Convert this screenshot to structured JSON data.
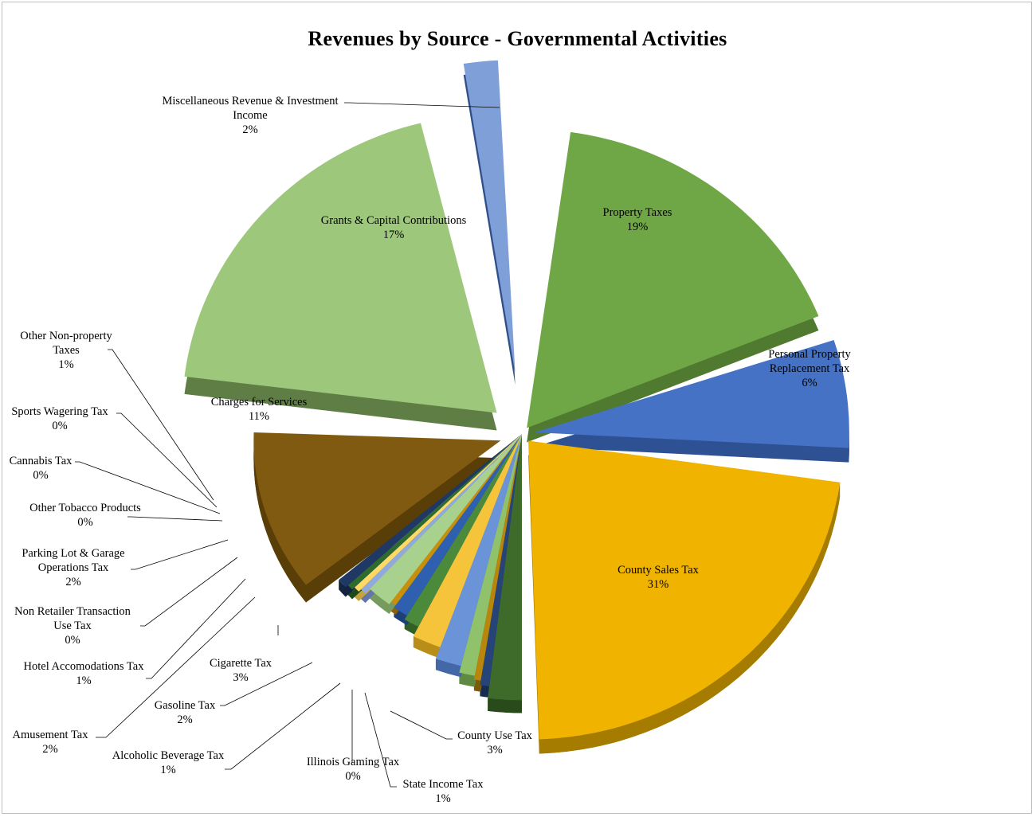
{
  "chart_data": {
    "type": "pie",
    "title": "Revenues by Source - Governmental Activities",
    "style": "3d-exploded",
    "slices": [
      {
        "label": "Property Taxes",
        "value": 19,
        "pct_label": "19%",
        "color": "#70a746",
        "side_color": "#4f7a30"
      },
      {
        "label": "Personal Property Replacement Tax",
        "value": 6,
        "pct_label": "6%",
        "color": "#4572c4",
        "side_color": "#2e5194"
      },
      {
        "label": "County Sales Tax",
        "value": 31,
        "pct_label": "31%",
        "color": "#f0b400",
        "side_color": "#a57c00"
      },
      {
        "label": "County Use Tax",
        "value": 3,
        "pct_label": "3%",
        "color": "#3e6b2a",
        "side_color": "#294a1b"
      },
      {
        "label": "State Income Tax",
        "value": 1,
        "pct_label": "1%",
        "color": "#264478",
        "side_color": "#182c4f"
      },
      {
        "label": "Illinois Gaming Tax",
        "value": 0,
        "pct_label": "0%",
        "color": "#b8860b",
        "side_color": "#7c5a07"
      },
      {
        "label": "Alcoholic Beverage Tax",
        "value": 1,
        "pct_label": "1%",
        "color": "#8fc26a",
        "side_color": "#5f8a42"
      },
      {
        "label": "Gasoline Tax",
        "value": 2,
        "pct_label": "2%",
        "color": "#6b93d8",
        "side_color": "#4467a8"
      },
      {
        "label": "Cigarette Tax",
        "value": 3,
        "pct_label": "3%",
        "color": "#f5c43a",
        "side_color": "#b88e18"
      },
      {
        "label": "Amusement Tax",
        "value": 2,
        "pct_label": "2%",
        "color": "#4b8a3a",
        "side_color": "#325f26"
      },
      {
        "label": "Hotel Accomodations Tax",
        "value": 1,
        "pct_label": "1%",
        "color": "#2f5faf",
        "side_color": "#1e3f78"
      },
      {
        "label": "Non Retailer Transaction Use Tax",
        "value": 0,
        "pct_label": "0%",
        "color": "#c8900a",
        "side_color": "#8a6206"
      },
      {
        "label": "Parking Lot & Garage Operations Tax",
        "value": 2,
        "pct_label": "2%",
        "color": "#a9d18e",
        "side_color": "#779a5e"
      },
      {
        "label": "Other Tobacco Products",
        "value": 0,
        "pct_label": "0%",
        "color": "#8faadc",
        "side_color": "#6077a8"
      },
      {
        "label": "Cannabis Tax",
        "value": 0,
        "pct_label": "0%",
        "color": "#ffd966",
        "side_color": "#c4a43a"
      },
      {
        "label": "Sports Wagering Tax",
        "value": 0,
        "pct_label": "0%",
        "color": "#2e6b2e",
        "side_color": "#1d4a1d"
      },
      {
        "label": "Other Non-property Taxes",
        "value": 1,
        "pct_label": "1%",
        "color": "#1f3864",
        "side_color": "#132340"
      },
      {
        "label": "Charges for Services",
        "value": 11,
        "pct_label": "11%",
        "color": "#7f5a10",
        "side_color": "#5a3e08"
      },
      {
        "label": "Grants & Capital Contributions",
        "value": 17,
        "pct_label": "17%",
        "color": "#9dc77b",
        "side_color": "#5f7e46"
      },
      {
        "label": "Miscellaneous Revenue & Investment Income",
        "value": 2,
        "pct_label": "2%",
        "color": "#7f9fd8",
        "side_color": "#2e4f8a"
      }
    ]
  }
}
